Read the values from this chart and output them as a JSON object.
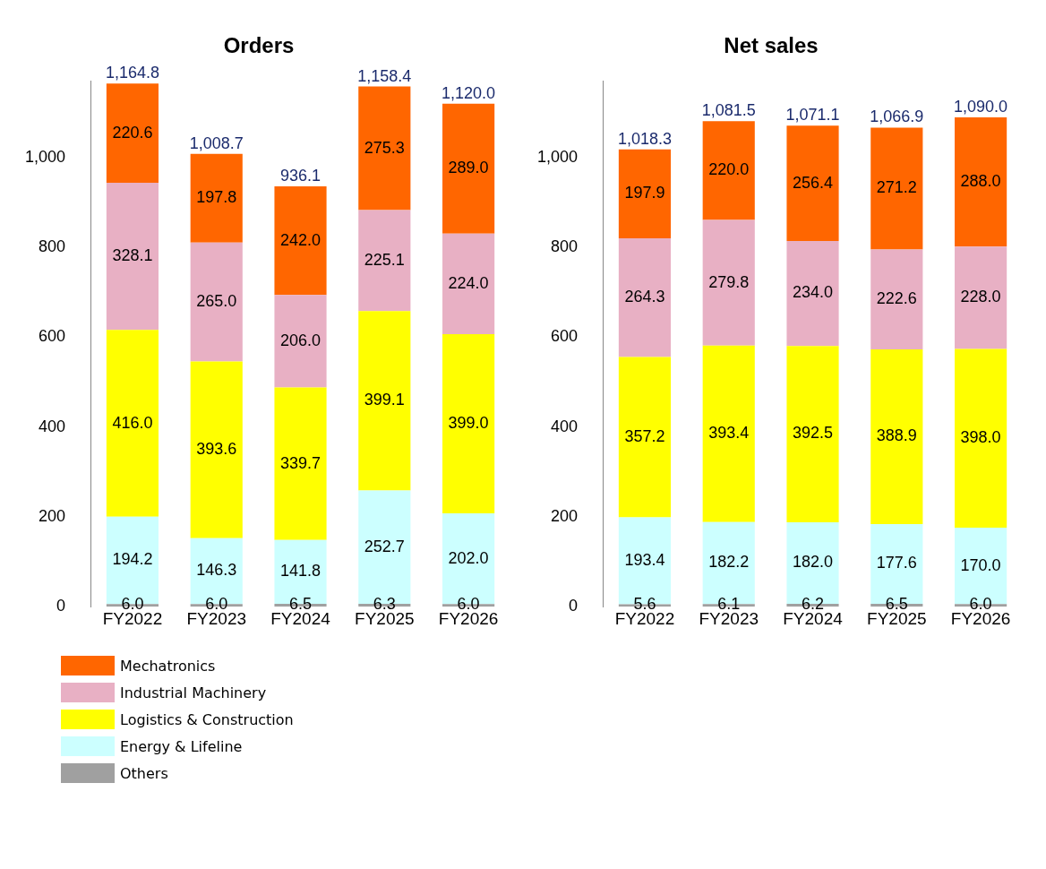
{
  "chart_data": [
    {
      "type": "bar",
      "title": "Orders",
      "stacked": true,
      "legend": "bottom left",
      "grid": false,
      "categories": [
        "FY2022",
        "FY2023",
        "FY2024",
        "FY2025",
        "FY2026"
      ],
      "ylim": [
        0,
        1170
      ],
      "yticks": [
        0,
        200,
        400,
        600,
        800,
        {
          "value": 1000,
          "label": "1,000"
        }
      ],
      "totals": [
        "1,164.8",
        "1,008.7",
        "936.1",
        "1,158.4",
        "1,120.0"
      ],
      "series": [
        {
          "name": "Others",
          "color": "#a0a0a0",
          "values": [
            6.0,
            6.0,
            6.5,
            6.3,
            6.0
          ],
          "value_labels": [
            "6.0",
            "6.0",
            "6.5",
            "6.3",
            "6.0"
          ]
        },
        {
          "name": "Energy & Lifeline",
          "color": "#ccffff",
          "values": [
            194.2,
            146.3,
            141.8,
            252.7,
            202.0
          ],
          "value_labels": [
            "194.2",
            "146.3",
            "141.8",
            "252.7",
            "202.0"
          ]
        },
        {
          "name": "Logistics & Construction",
          "color": "#ffff00",
          "values": [
            416.0,
            393.6,
            339.7,
            399.1,
            399.0
          ],
          "value_labels": [
            "416.0",
            "393.6",
            "339.7",
            "399.1",
            "399.0"
          ]
        },
        {
          "name": "Industrial Machinery",
          "color": "#e8b0c4",
          "values": [
            328.1,
            265.0,
            206.0,
            225.1,
            224.0
          ],
          "value_labels": [
            "328.1",
            "265.0",
            "206.0",
            "225.1",
            "224.0"
          ]
        },
        {
          "name": "Mechatronics",
          "color": "#ff6600",
          "values": [
            220.6,
            197.8,
            242.0,
            275.3,
            289.0
          ],
          "value_labels": [
            "220.6",
            "197.8",
            "242.0",
            "275.3",
            "289.0"
          ]
        }
      ]
    },
    {
      "type": "bar",
      "title": "Net sales",
      "stacked": true,
      "legend": false,
      "grid": false,
      "categories": [
        "FY2022",
        "FY2023",
        "FY2024",
        "FY2025",
        "FY2026"
      ],
      "ylim": [
        0,
        1170
      ],
      "yticks": [
        0,
        200,
        400,
        600,
        800,
        {
          "value": 1000,
          "label": "1,000"
        }
      ],
      "totals": [
        "1,018.3",
        "1,081.5",
        "1,071.1",
        "1,066.9",
        "1,090.0"
      ],
      "series": [
        {
          "color": "#a0a0a0",
          "values": [
            5.6,
            6.1,
            6.2,
            6.5,
            6.0
          ],
          "value_labels": [
            "5.6",
            "6.1",
            "6.2",
            "6.5",
            "6.0"
          ]
        },
        {
          "color": "#ccffff",
          "values": [
            193.4,
            182.2,
            182.0,
            177.6,
            170.0
          ],
          "value_labels": [
            "193.4",
            "182.2",
            "182.0",
            "177.6",
            "170.0"
          ]
        },
        {
          "color": "#ffff00",
          "values": [
            357.2,
            393.4,
            392.5,
            388.9,
            398.0
          ],
          "value_labels": [
            "357.2",
            "393.4",
            "392.5",
            "388.9",
            "398.0"
          ]
        },
        {
          "color": "#e8b0c4",
          "values": [
            264.3,
            279.8,
            234.0,
            222.6,
            228.0
          ],
          "value_labels": [
            "264.3",
            "279.8",
            "234.0",
            "222.6",
            "228.0"
          ]
        },
        {
          "color": "#ff6600",
          "values": [
            197.9,
            220.0,
            256.4,
            271.2,
            288.0
          ],
          "value_labels": [
            "197.9",
            "220.0",
            "256.4",
            "271.2",
            "288.0"
          ]
        }
      ]
    }
  ]
}
